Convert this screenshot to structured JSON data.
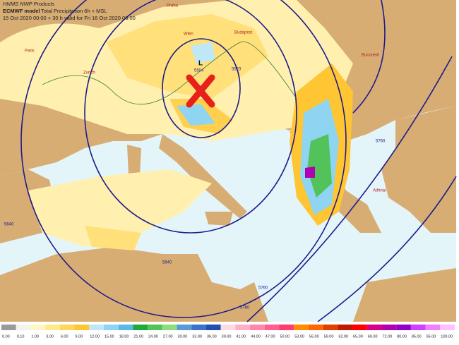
{
  "header": {
    "product": "HNMS NWP Products",
    "model": "ECMWF model",
    "field": "Total Precipitation 6h + MSL",
    "validity": "15 Oct 2020 00:00 + 30 h valid for Fri 16 Oct 2020 06:00"
  },
  "cities": [
    "Praha",
    "Wien",
    "Budapest",
    "Paris",
    "Zurich",
    "Bucuresti",
    "Athinai"
  ],
  "contours": {
    "low": "L",
    "low_value": "5504",
    "labels": [
      "5520",
      "5640",
      "5640",
      "5760",
      "5760",
      "5760"
    ]
  },
  "colorbar": {
    "labels": [
      "0.00",
      "0.10",
      "1.00",
      "3.00",
      "6.00",
      "9.00",
      "12.00",
      "15.00",
      "18.00",
      "21.00",
      "24.00",
      "27.00",
      "30.00",
      "33.00",
      "36.00",
      "39.00",
      "41.00",
      "44.00",
      "47.00",
      "50.00",
      "53.00",
      "56.00",
      "59.00",
      "62.00",
      "65.00",
      "69.00",
      "72.00",
      "80.00",
      "85.00",
      "95.00",
      "100.00"
    ],
    "colors": [
      "#9a9a9a",
      "#f4f4ee",
      "#fff6c8",
      "#ffe98a",
      "#ffd65a",
      "#ffc533",
      "#bfe8f6",
      "#8fd4f0",
      "#5cb8e8",
      "#1fa83c",
      "#52c25a",
      "#8ddc80",
      "#5a9ad8",
      "#3a74c8",
      "#2250b0",
      "#ffd9e6",
      "#ffb0c8",
      "#ff88aa",
      "#ff6090",
      "#ff3c70",
      "#ff8c00",
      "#ff6600",
      "#e04000",
      "#c01a00",
      "#ff0000",
      "#d60088",
      "#b000b0",
      "#9000c8",
      "#d040ff",
      "#f080ff",
      "#ffc0ff"
    ]
  }
}
